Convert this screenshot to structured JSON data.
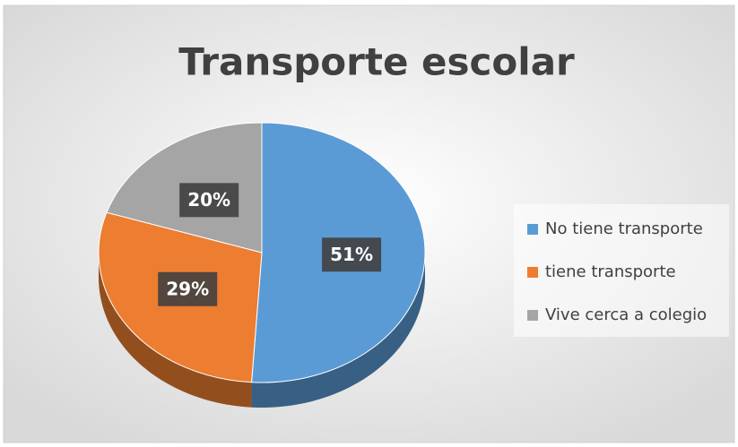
{
  "chart_data": {
    "type": "pie",
    "title": "Transporte escolar",
    "categories": [
      "No tiene transporte",
      "tiene transporte",
      "Vive cerca a colegio"
    ],
    "values": [
      51,
      29,
      20
    ],
    "value_labels": [
      "51%",
      "29%",
      "20%"
    ],
    "colors": [
      "#5b9bd5",
      "#ed7d31",
      "#a5a5a5"
    ],
    "legend": "right"
  }
}
